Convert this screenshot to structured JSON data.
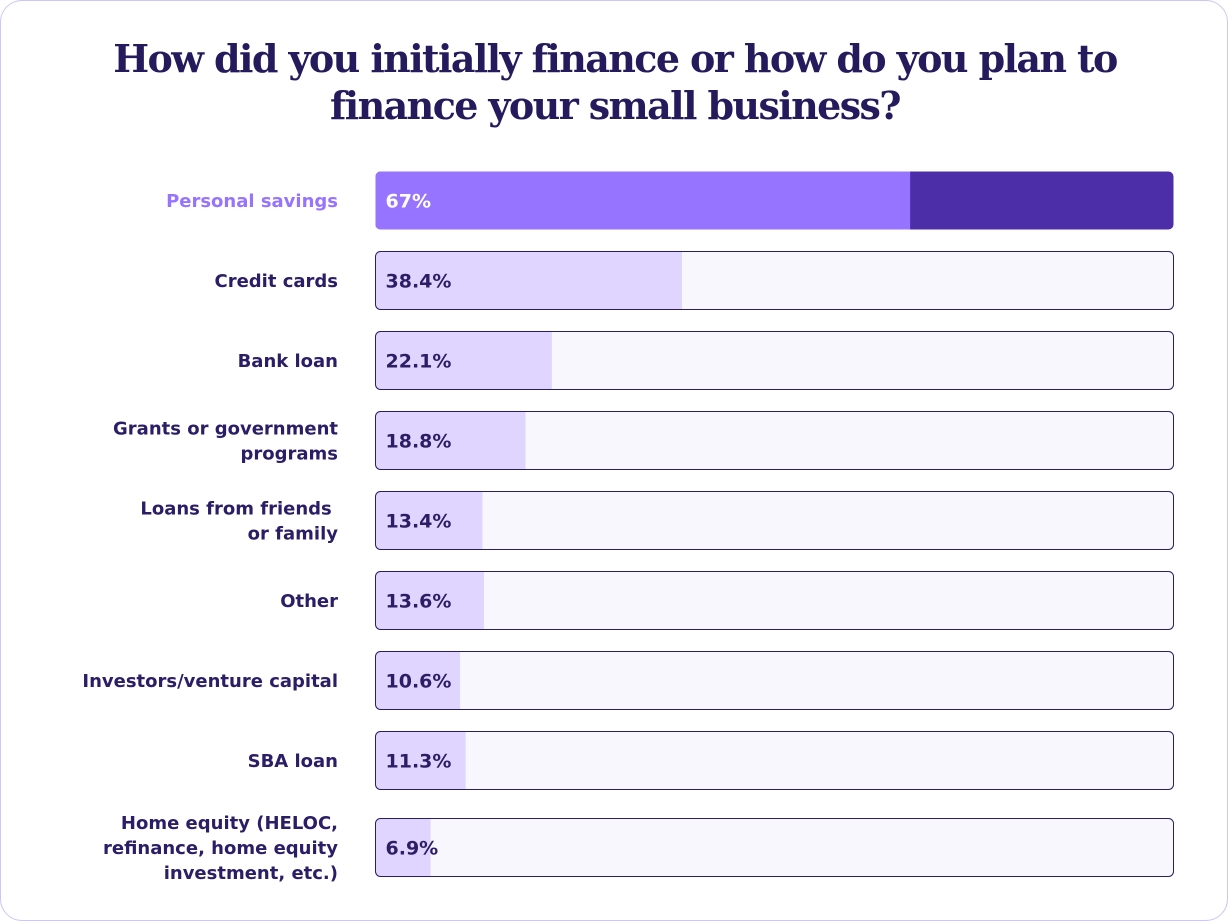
{
  "chart_data": {
    "type": "bar",
    "orientation": "horizontal",
    "title": "How did you initially finance or how do you plan to finance your small business?",
    "categories": [
      "Personal savings",
      "Credit cards",
      "Bank loan",
      "Grants or government programs",
      "Loans from friends or family",
      "Other",
      "Investors/venture capital",
      "SBA loan",
      "Home equity (HELOC, refinance, home equity investment, etc.)"
    ],
    "category_label_lines": [
      [
        "Personal savings"
      ],
      [
        "Credit cards"
      ],
      [
        "Bank loan"
      ],
      [
        "Grants or government",
        "programs"
      ],
      [
        "Loans from friends ",
        "or family"
      ],
      [
        "Other"
      ],
      [
        "Investors/venture capital"
      ],
      [
        "SBA loan"
      ],
      [
        "Home equity (HELOC,",
        "refinance, home equity",
        "investment, etc.)"
      ]
    ],
    "values": [
      67,
      38.4,
      22.1,
      18.8,
      13.4,
      13.6,
      10.6,
      11.3,
      6.9
    ],
    "value_labels": [
      "67%",
      "38.4%",
      "22.1%",
      "18.8%",
      "13.4%",
      "13.6%",
      "10.6%",
      "11.3%",
      "6.9%"
    ],
    "unit": "%",
    "xlim": [
      0,
      100
    ],
    "highlight_index": 0,
    "grid": false,
    "legend": "none",
    "colors": {
      "highlight_fill": "#9774ff",
      "highlight_track": "#4b2ea8",
      "bar_fill": "#dfd5ff",
      "track_fill": "#f8f7fe",
      "track_border": "#2b1d66",
      "label_text": "#2b1d66",
      "highlight_label_text": "#9774ff",
      "title_text": "#241a5c",
      "card_border": "#cdc5f3"
    }
  }
}
